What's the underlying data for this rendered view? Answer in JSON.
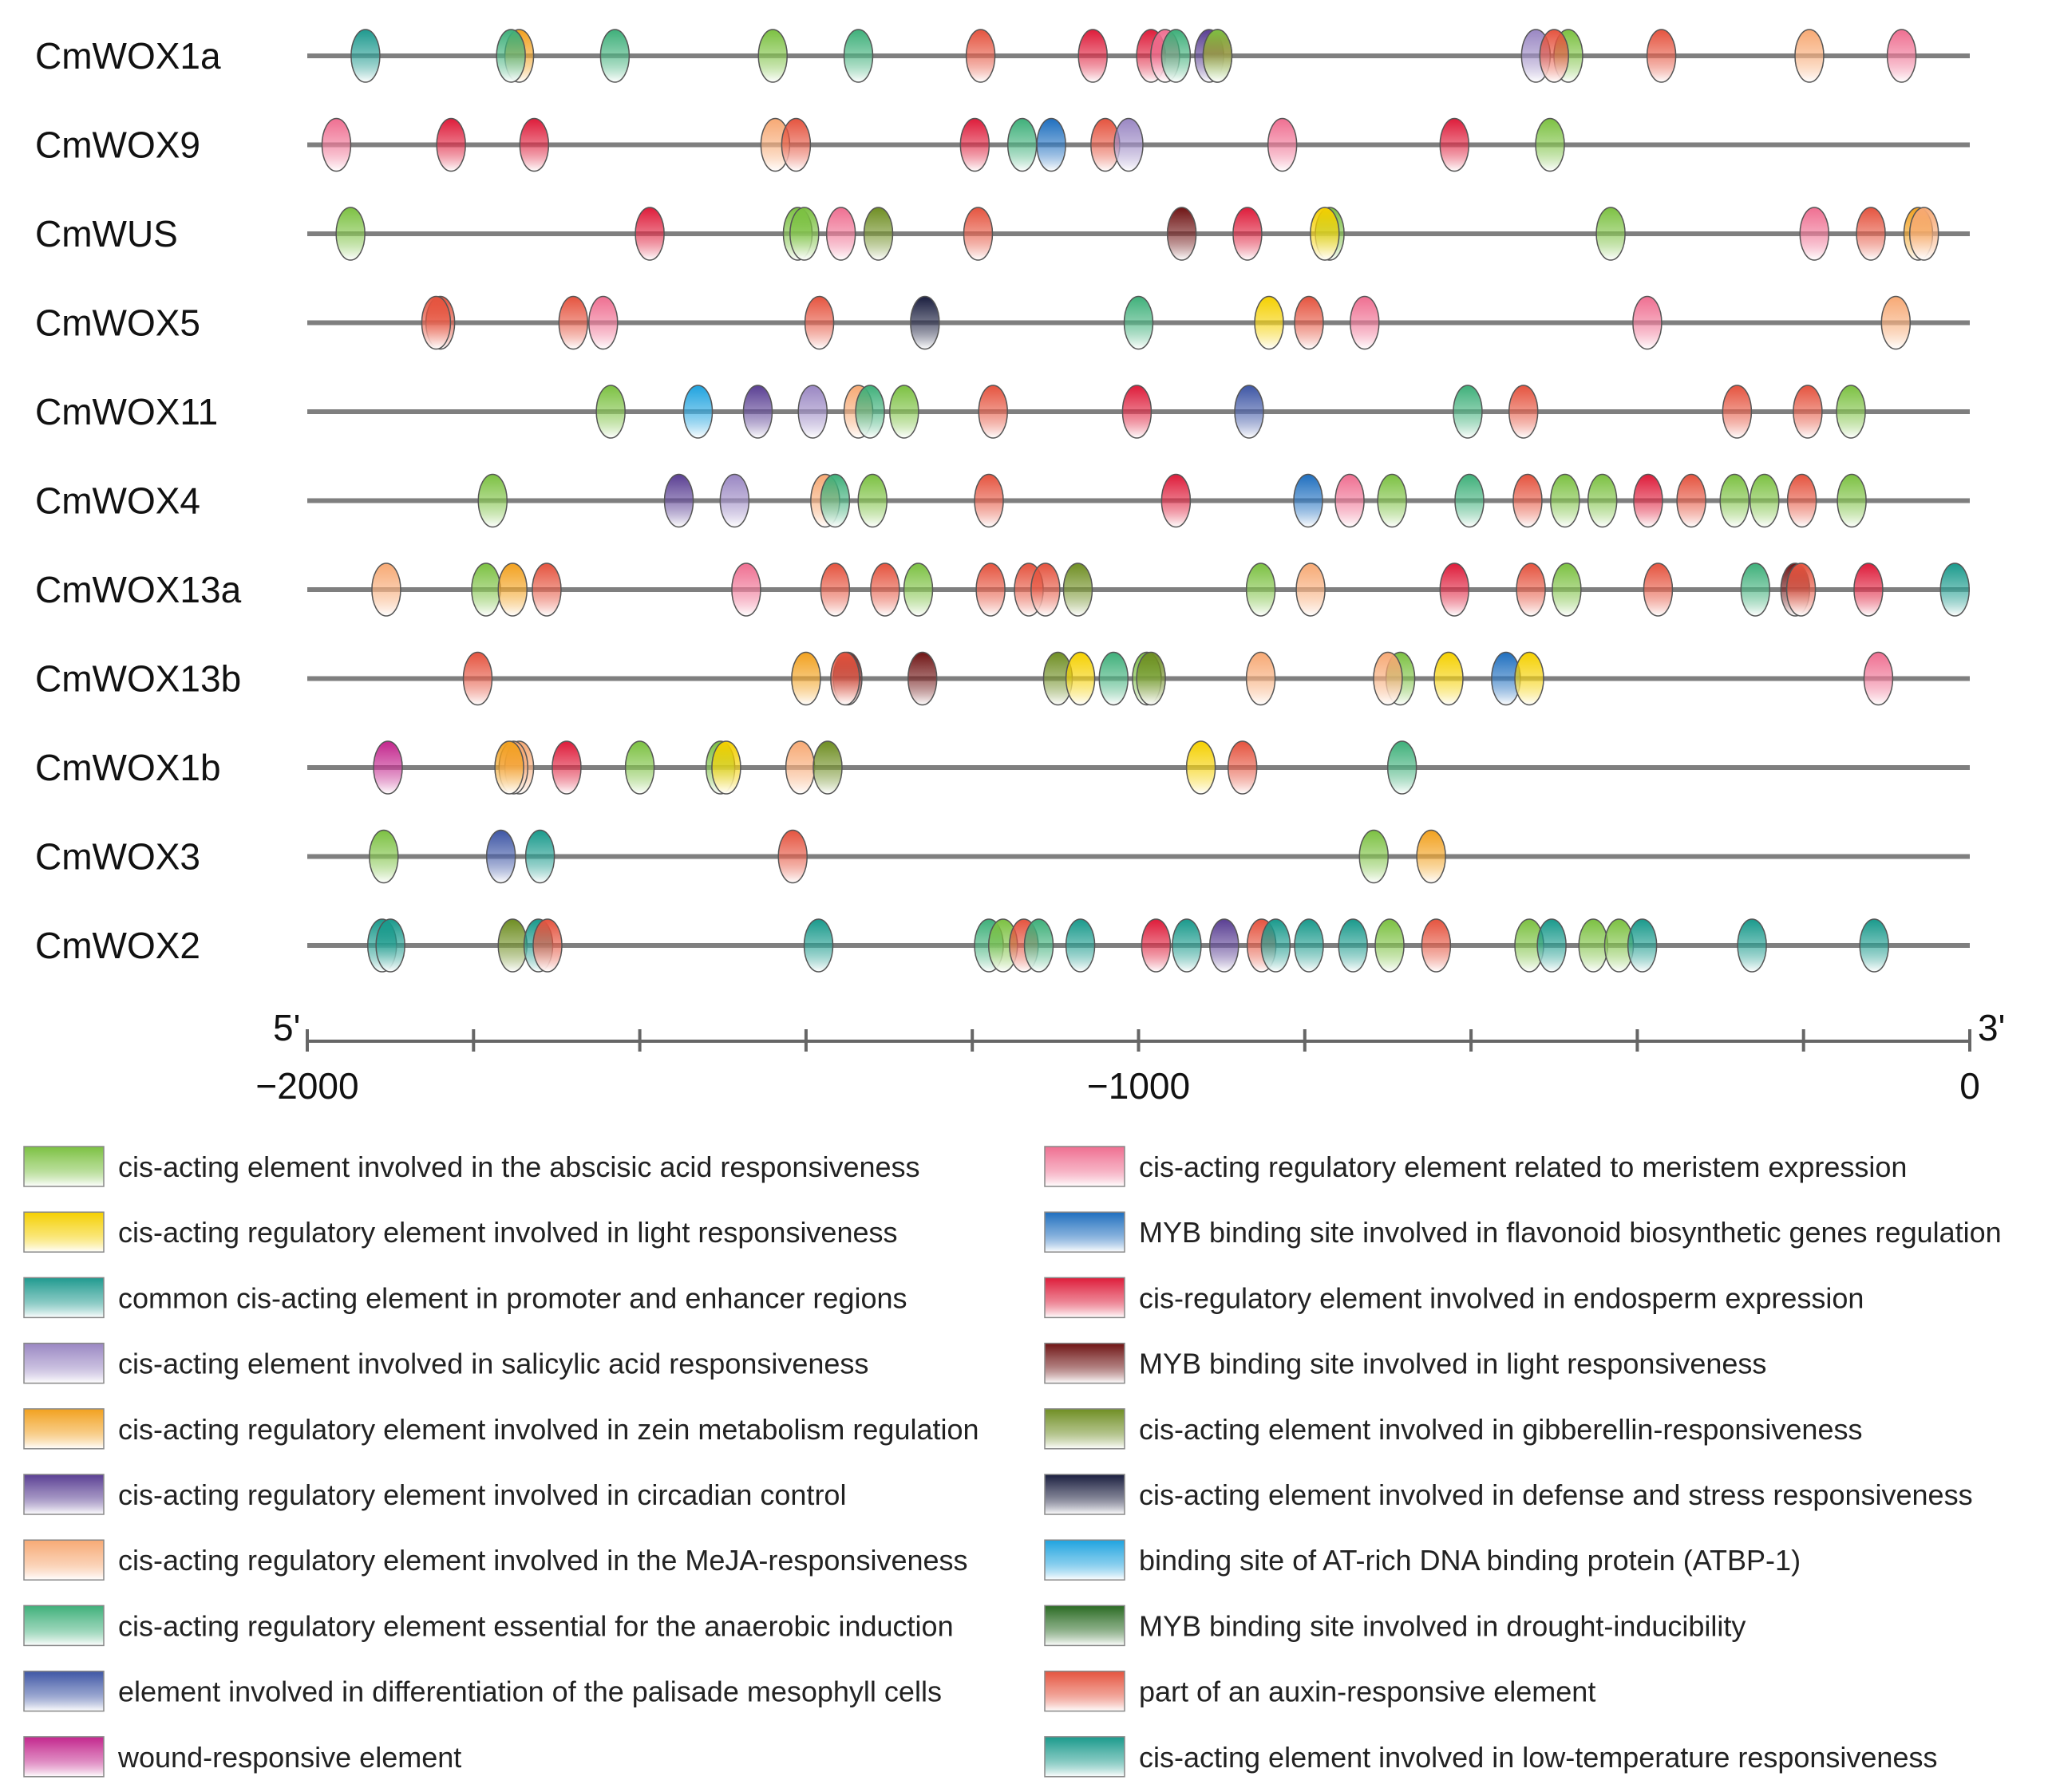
{
  "figure": {
    "end5_label": "5'",
    "end3_label": "3'",
    "axis_range": [
      -2000,
      0
    ],
    "axis_tick_step": 200,
    "axis_labels": [
      {
        "value": -2000,
        "text": "−2000"
      },
      {
        "value": -1000,
        "text": "−1000"
      },
      {
        "value": 0,
        "text": "0"
      }
    ]
  },
  "legend": [
    {
      "key": "abscisic",
      "color": "#7cc142",
      "text": "cis-acting element involved in the abscisic acid responsiveness"
    },
    {
      "key": "light",
      "color": "#f5d000",
      "text": "cis-acting regulatory element involved in light responsiveness"
    },
    {
      "key": "common",
      "color": "#1f9a8f",
      "text": "common cis-acting element in promoter and enhancer regions"
    },
    {
      "key": "salicylic",
      "color": "#9a87c3",
      "text": "cis-acting element involved in salicylic acid responsiveness"
    },
    {
      "key": "zein",
      "color": "#f2a11f",
      "text": "cis-acting regulatory element involved in zein metabolism regulation"
    },
    {
      "key": "circadian",
      "color": "#5a3f93",
      "text": "cis-acting regulatory element involved in circadian control"
    },
    {
      "key": "meja",
      "color": "#f7a974",
      "text": "cis-acting regulatory element involved in the MeJA-responsiveness"
    },
    {
      "key": "anaerobic",
      "color": "#3fb07a",
      "text": "cis-acting regulatory element essential for the anaerobic induction"
    },
    {
      "key": "palisade",
      "color": "#3e56a5",
      "text": "element involved in differentiation of the palisade mesophyll cells"
    },
    {
      "key": "wound",
      "color": "#c3268d",
      "text": "wound-responsive element"
    },
    {
      "key": "meristem",
      "color": "#ef6f91",
      "text": "cis-acting regulatory element related to meristem expression"
    },
    {
      "key": "myb_flavonoid",
      "color": "#1f6fbf",
      "text": "MYB binding site involved in flavonoid biosynthetic genes regulation"
    },
    {
      "key": "endosperm",
      "color": "#de1c3a",
      "text": "cis-regulatory element involved in endosperm expression"
    },
    {
      "key": "myb_light",
      "color": "#6f1414",
      "text": "MYB binding site involved in light responsiveness"
    },
    {
      "key": "gibberellin",
      "color": "#6f8e23",
      "text": "cis-acting element involved in gibberellin-responsiveness"
    },
    {
      "key": "defense",
      "color": "#1a1e3f",
      "text": "cis-acting element involved in defense and stress responsiveness"
    },
    {
      "key": "atbp",
      "color": "#1fa3df",
      "text": "binding site of AT-rich DNA binding protein (ATBP-1)"
    },
    {
      "key": "myb_drought",
      "color": "#2a6b23",
      "text": "MYB binding site involved in drought-inducibility"
    },
    {
      "key": "auxin",
      "color": "#e5543f",
      "text": "part of an auxin-responsive element"
    },
    {
      "key": "lowtemp",
      "color": "#1a9a8c",
      "text": "cis-acting element involved in low-temperature responsiveness"
    }
  ],
  "genes": [
    {
      "name": "CmWOX1a",
      "elements": [
        {
          "pos": -1930,
          "type": "common"
        },
        {
          "pos": -1745,
          "type": "zein"
        },
        {
          "pos": -1755,
          "type": "anaerobic"
        },
        {
          "pos": -1630,
          "type": "anaerobic"
        },
        {
          "pos": -1440,
          "type": "abscisic"
        },
        {
          "pos": -1337,
          "type": "anaerobic"
        },
        {
          "pos": -1190,
          "type": "auxin"
        },
        {
          "pos": -1055,
          "type": "endosperm"
        },
        {
          "pos": -985,
          "type": "endosperm"
        },
        {
          "pos": -968,
          "type": "meristem"
        },
        {
          "pos": -955,
          "type": "anaerobic"
        },
        {
          "pos": -915,
          "type": "circadian"
        },
        {
          "pos": -905,
          "type": "endosperm"
        },
        {
          "pos": -905,
          "type": "abscisic"
        },
        {
          "pos": -522,
          "type": "salicylic"
        },
        {
          "pos": -483,
          "type": "abscisic"
        },
        {
          "pos": -500,
          "type": "auxin"
        },
        {
          "pos": -371,
          "type": "auxin"
        },
        {
          "pos": -193,
          "type": "meja"
        },
        {
          "pos": -82,
          "type": "meristem"
        }
      ]
    },
    {
      "name": "CmWOX9",
      "elements": [
        {
          "pos": -1965,
          "type": "meristem"
        },
        {
          "pos": -1827,
          "type": "endosperm"
        },
        {
          "pos": -1727,
          "type": "endosperm"
        },
        {
          "pos": -1437,
          "type": "meja"
        },
        {
          "pos": -1412,
          "type": "auxin"
        },
        {
          "pos": -1197,
          "type": "endosperm"
        },
        {
          "pos": -1140,
          "type": "anaerobic"
        },
        {
          "pos": -1105,
          "type": "myb_flavonoid"
        },
        {
          "pos": -1040,
          "type": "auxin"
        },
        {
          "pos": -1012,
          "type": "salicylic"
        },
        {
          "pos": -827,
          "type": "meristem"
        },
        {
          "pos": -620,
          "type": "endosperm"
        },
        {
          "pos": -505,
          "type": "abscisic"
        }
      ]
    },
    {
      "name": "CmWUS",
      "elements": [
        {
          "pos": -1948,
          "type": "abscisic"
        },
        {
          "pos": -1588,
          "type": "endosperm"
        },
        {
          "pos": -1410,
          "type": "abscisic"
        },
        {
          "pos": -1402,
          "type": "abscisic"
        },
        {
          "pos": -1358,
          "type": "meristem"
        },
        {
          "pos": -1313,
          "type": "gibberellin"
        },
        {
          "pos": -1193,
          "type": "auxin"
        },
        {
          "pos": -948,
          "type": "myb_light"
        },
        {
          "pos": -869,
          "type": "endosperm"
        },
        {
          "pos": -770,
          "type": "abscisic"
        },
        {
          "pos": -776,
          "type": "light"
        },
        {
          "pos": -432,
          "type": "abscisic"
        },
        {
          "pos": -187,
          "type": "meristem"
        },
        {
          "pos": -119,
          "type": "auxin"
        },
        {
          "pos": -62,
          "type": "zein"
        },
        {
          "pos": -55,
          "type": "meja"
        }
      ]
    },
    {
      "name": "CmWOX5",
      "elements": [
        {
          "pos": -1840,
          "type": "auxin"
        },
        {
          "pos": -1845,
          "type": "auxin"
        },
        {
          "pos": -1680,
          "type": "auxin"
        },
        {
          "pos": -1644,
          "type": "meristem"
        },
        {
          "pos": -1384,
          "type": "auxin"
        },
        {
          "pos": -1257,
          "type": "defense"
        },
        {
          "pos": -1000,
          "type": "anaerobic"
        },
        {
          "pos": -843,
          "type": "light"
        },
        {
          "pos": -795,
          "type": "auxin"
        },
        {
          "pos": -728,
          "type": "meristem"
        },
        {
          "pos": -388,
          "type": "meristem"
        },
        {
          "pos": -89,
          "type": "meja"
        }
      ]
    },
    {
      "name": "CmWOX11",
      "elements": [
        {
          "pos": -1635,
          "type": "abscisic"
        },
        {
          "pos": -1530,
          "type": "atbp"
        },
        {
          "pos": -1458,
          "type": "circadian"
        },
        {
          "pos": -1392,
          "type": "salicylic"
        },
        {
          "pos": -1337,
          "type": "meja"
        },
        {
          "pos": -1323,
          "type": "anaerobic"
        },
        {
          "pos": -1282,
          "type": "abscisic"
        },
        {
          "pos": -1175,
          "type": "auxin"
        },
        {
          "pos": -1002,
          "type": "endosperm"
        },
        {
          "pos": -867,
          "type": "palisade"
        },
        {
          "pos": -604,
          "type": "anaerobic"
        },
        {
          "pos": -537,
          "type": "auxin"
        },
        {
          "pos": -280,
          "type": "auxin"
        },
        {
          "pos": -195,
          "type": "auxin"
        },
        {
          "pos": -143,
          "type": "abscisic"
        }
      ]
    },
    {
      "name": "CmWOX4",
      "elements": [
        {
          "pos": -1777,
          "type": "abscisic"
        },
        {
          "pos": -1553,
          "type": "circadian"
        },
        {
          "pos": -1486,
          "type": "salicylic"
        },
        {
          "pos": -1377,
          "type": "meja"
        },
        {
          "pos": -1365,
          "type": "anaerobic"
        },
        {
          "pos": -1320,
          "type": "abscisic"
        },
        {
          "pos": -1180,
          "type": "auxin"
        },
        {
          "pos": -955,
          "type": "endosperm"
        },
        {
          "pos": -796,
          "type": "myb_flavonoid"
        },
        {
          "pos": -746,
          "type": "meristem"
        },
        {
          "pos": -695,
          "type": "abscisic"
        },
        {
          "pos": -602,
          "type": "anaerobic"
        },
        {
          "pos": -532,
          "type": "auxin"
        },
        {
          "pos": -487,
          "type": "abscisic"
        },
        {
          "pos": -442,
          "type": "abscisic"
        },
        {
          "pos": -387,
          "type": "endosperm"
        },
        {
          "pos": -335,
          "type": "auxin"
        },
        {
          "pos": -283,
          "type": "abscisic"
        },
        {
          "pos": -247,
          "type": "abscisic"
        },
        {
          "pos": -202,
          "type": "auxin"
        },
        {
          "pos": -142,
          "type": "abscisic"
        }
      ]
    },
    {
      "name": "CmWOX13a",
      "elements": [
        {
          "pos": -1905,
          "type": "meja"
        },
        {
          "pos": -1785,
          "type": "abscisic"
        },
        {
          "pos": -1753,
          "type": "zein"
        },
        {
          "pos": -1712,
          "type": "auxin"
        },
        {
          "pos": -1472,
          "type": "meristem"
        },
        {
          "pos": -1365,
          "type": "auxin"
        },
        {
          "pos": -1305,
          "type": "auxin"
        },
        {
          "pos": -1265,
          "type": "abscisic"
        },
        {
          "pos": -1178,
          "type": "auxin"
        },
        {
          "pos": -1132,
          "type": "auxin"
        },
        {
          "pos": -1112,
          "type": "auxin"
        },
        {
          "pos": -1073,
          "type": "gibberellin"
        },
        {
          "pos": -853,
          "type": "abscisic"
        },
        {
          "pos": -793,
          "type": "meja"
        },
        {
          "pos": -620,
          "type": "endosperm"
        },
        {
          "pos": -528,
          "type": "auxin"
        },
        {
          "pos": -485,
          "type": "abscisic"
        },
        {
          "pos": -375,
          "type": "auxin"
        },
        {
          "pos": -258,
          "type": "anaerobic"
        },
        {
          "pos": -210,
          "type": "myb_light"
        },
        {
          "pos": -203,
          "type": "auxin"
        },
        {
          "pos": -122,
          "type": "endosperm"
        },
        {
          "pos": -18,
          "type": "lowtemp"
        }
      ]
    },
    {
      "name": "CmWOX13b",
      "elements": [
        {
          "pos": -1795,
          "type": "auxin"
        },
        {
          "pos": -1400,
          "type": "zein"
        },
        {
          "pos": -1350,
          "type": "myb_light"
        },
        {
          "pos": -1353,
          "type": "auxin"
        },
        {
          "pos": -1260,
          "type": "myb_light"
        },
        {
          "pos": -1097,
          "type": "gibberellin"
        },
        {
          "pos": -1070,
          "type": "light"
        },
        {
          "pos": -1030,
          "type": "anaerobic"
        },
        {
          "pos": -990,
          "type": "abscisic"
        },
        {
          "pos": -985,
          "type": "gibberellin"
        },
        {
          "pos": -853,
          "type": "meja"
        },
        {
          "pos": -685,
          "type": "abscisic"
        },
        {
          "pos": -700,
          "type": "meja"
        },
        {
          "pos": -627,
          "type": "light"
        },
        {
          "pos": -558,
          "type": "myb_flavonoid"
        },
        {
          "pos": -530,
          "type": "light"
        },
        {
          "pos": -110,
          "type": "meristem"
        }
      ]
    },
    {
      "name": "CmWOX1b",
      "elements": [
        {
          "pos": -1903,
          "type": "wound"
        },
        {
          "pos": -1745,
          "type": "meja"
        },
        {
          "pos": -1752,
          "type": "meja"
        },
        {
          "pos": -1757,
          "type": "zein"
        },
        {
          "pos": -1688,
          "type": "endosperm"
        },
        {
          "pos": -1600,
          "type": "abscisic"
        },
        {
          "pos": -1503,
          "type": "abscisic"
        },
        {
          "pos": -1496,
          "type": "light"
        },
        {
          "pos": -1407,
          "type": "meja"
        },
        {
          "pos": -1374,
          "type": "gibberellin"
        },
        {
          "pos": -925,
          "type": "light"
        },
        {
          "pos": -875,
          "type": "auxin"
        },
        {
          "pos": -683,
          "type": "anaerobic"
        }
      ]
    },
    {
      "name": "CmWOX3",
      "elements": [
        {
          "pos": -1908,
          "type": "abscisic"
        },
        {
          "pos": -1767,
          "type": "palisade"
        },
        {
          "pos": -1720,
          "type": "lowtemp"
        },
        {
          "pos": -1416,
          "type": "auxin"
        },
        {
          "pos": -717,
          "type": "abscisic"
        },
        {
          "pos": -648,
          "type": "zein"
        }
      ]
    },
    {
      "name": "CmWOX2",
      "elements": [
        {
          "pos": -1910,
          "type": "lowtemp"
        },
        {
          "pos": -1900,
          "type": "lowtemp"
        },
        {
          "pos": -1753,
          "type": "gibberellin"
        },
        {
          "pos": -1722,
          "type": "lowtemp"
        },
        {
          "pos": -1711,
          "type": "auxin"
        },
        {
          "pos": -1385,
          "type": "lowtemp"
        },
        {
          "pos": -1180,
          "type": "anaerobic"
        },
        {
          "pos": -1163,
          "type": "abscisic"
        },
        {
          "pos": -1138,
          "type": "auxin"
        },
        {
          "pos": -1120,
          "type": "anaerobic"
        },
        {
          "pos": -1070,
          "type": "lowtemp"
        },
        {
          "pos": -979,
          "type": "endosperm"
        },
        {
          "pos": -942,
          "type": "lowtemp"
        },
        {
          "pos": -897,
          "type": "circadian"
        },
        {
          "pos": -852,
          "type": "auxin"
        },
        {
          "pos": -835,
          "type": "lowtemp"
        },
        {
          "pos": -795,
          "type": "lowtemp"
        },
        {
          "pos": -742,
          "type": "lowtemp"
        },
        {
          "pos": -698,
          "type": "abscisic"
        },
        {
          "pos": -642,
          "type": "auxin"
        },
        {
          "pos": -530,
          "type": "abscisic"
        },
        {
          "pos": -503,
          "type": "lowtemp"
        },
        {
          "pos": -453,
          "type": "abscisic"
        },
        {
          "pos": -422,
          "type": "abscisic"
        },
        {
          "pos": -394,
          "type": "lowtemp"
        },
        {
          "pos": -262,
          "type": "lowtemp"
        },
        {
          "pos": -115,
          "type": "lowtemp"
        }
      ]
    }
  ]
}
